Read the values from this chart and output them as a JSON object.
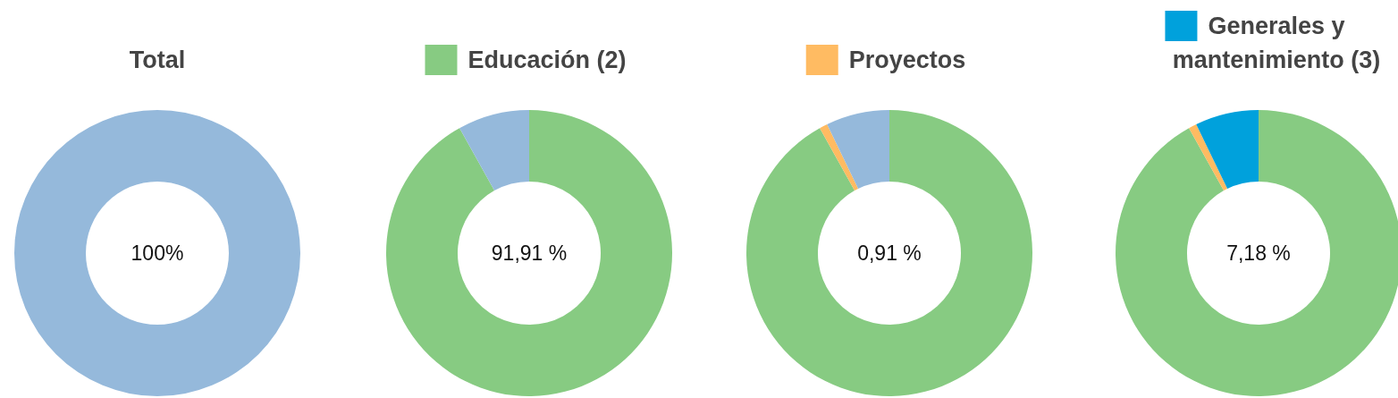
{
  "chart_data": [
    {
      "type": "donut",
      "title": "Total",
      "categories": [
        null
      ],
      "values": [
        100
      ],
      "colors": [
        "#95b9db"
      ],
      "annotations": [
        "100%"
      ]
    },
    {
      "type": "donut",
      "categories": [
        "Educación (2)",
        null
      ],
      "values": [
        91.91,
        8.09
      ],
      "colors": [
        "#87cb82",
        "#95b9db"
      ],
      "legend": "top",
      "annotations": [
        "91,91 %"
      ]
    },
    {
      "type": "donut",
      "categories": [
        null,
        "Proyectos",
        null
      ],
      "values": [
        91.91,
        0.91,
        7.18
      ],
      "colors": [
        "#87cb82",
        "#ffbb62",
        "#95b9db"
      ],
      "legend": "top",
      "annotations": [
        "0,91 %"
      ]
    },
    {
      "type": "donut",
      "categories": [
        null,
        null,
        "Generales y mantenimiento (3)"
      ],
      "values": [
        91.91,
        0.91,
        7.18
      ],
      "colors": [
        "#87cb82",
        "#ffbb62",
        "#00a1dc"
      ],
      "legend": "top",
      "annotations": [
        "7,18 %"
      ]
    }
  ]
}
